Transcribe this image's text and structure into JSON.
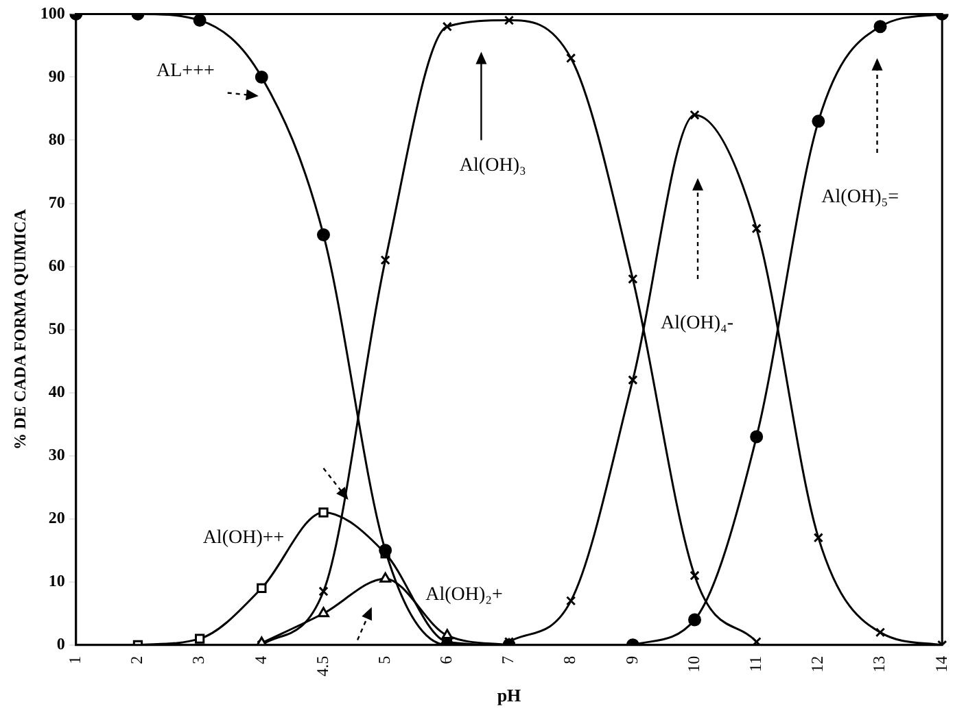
{
  "chart_data": {
    "type": "line",
    "xlabel": "pH",
    "ylabel": "% DE CADA FORMA QUIMICA",
    "categories": [
      "1",
      "2",
      "3",
      "4",
      "4.5",
      "5",
      "6",
      "7",
      "8",
      "9",
      "10",
      "11",
      "12",
      "13",
      "14"
    ],
    "ylim": [
      0,
      100
    ],
    "yticks": [
      0,
      10,
      20,
      30,
      40,
      50,
      60,
      70,
      80,
      90,
      100
    ],
    "grid": false,
    "legend": false,
    "line_style": "solid",
    "series": [
      {
        "name": "AL+++",
        "color": "#000000",
        "marker": "circle",
        "values": [
          100,
          100,
          99,
          90,
          65,
          15,
          0,
          0,
          null,
          null,
          null,
          null,
          null,
          null,
          null
        ]
      },
      {
        "name": "Al(OH)++",
        "color": "#000000",
        "marker": "square",
        "values": [
          null,
          0,
          1,
          9,
          21,
          14.5,
          0.5,
          0,
          null,
          null,
          null,
          null,
          null,
          null,
          null
        ]
      },
      {
        "name": "Al(OH)₂+",
        "color": "#000000",
        "marker": "triangle",
        "values": [
          null,
          null,
          null,
          0.3,
          5,
          10.5,
          1.5,
          0,
          null,
          null,
          null,
          null,
          null,
          null,
          null
        ]
      },
      {
        "name": "Al(OH)₃",
        "color": "#000000",
        "marker": "cross",
        "values": [
          null,
          null,
          null,
          0,
          8.5,
          61,
          98,
          99,
          93,
          58,
          11,
          0.5,
          null,
          null,
          null
        ]
      },
      {
        "name": "Al(OH)₄-",
        "color": "#000000",
        "marker": "cross",
        "values": [
          null,
          null,
          null,
          null,
          null,
          null,
          null,
          0.5,
          7,
          42,
          84,
          66,
          17,
          2,
          0
        ]
      },
      {
        "name": "Al(OH)₅=",
        "color": "#000000",
        "marker": "circle",
        "values": [
          null,
          null,
          null,
          null,
          null,
          null,
          null,
          null,
          null,
          0,
          4,
          33,
          83,
          98,
          100
        ]
      }
    ]
  }
}
